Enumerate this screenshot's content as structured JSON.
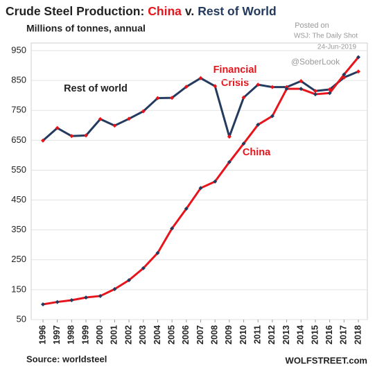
{
  "chart_data": {
    "type": "line",
    "title_parts": [
      {
        "text": "Crude Steel Production:",
        "color": "#222222"
      },
      {
        "text": "China",
        "color": "#e8141b"
      },
      {
        "text": "v.",
        "color": "#222222"
      },
      {
        "text": "Rest of World",
        "color": "#243a5e"
      }
    ],
    "subtitle": "Millions of tonnes, annual",
    "posted": [
      "Posted on",
      "WSJ: The Daily Shot",
      "24-Jun-2019"
    ],
    "handle": "@SoberLook",
    "source": "Source: worldsteel",
    "brand": "WOLFSTREET.com",
    "annotations": {
      "rest": "Rest of world",
      "crisis": [
        "Financial",
        "Crisis"
      ],
      "china": "China"
    },
    "categories": [
      "1996",
      "1997",
      "1998",
      "1999",
      "2000",
      "2001",
      "2002",
      "2003",
      "2004",
      "2005",
      "2006",
      "2007",
      "2008",
      "2009",
      "2010",
      "2011",
      "2012",
      "2013",
      "2014",
      "2015",
      "2016",
      "2017",
      "2018"
    ],
    "series": [
      {
        "name": "Rest of world",
        "color": "#243a5e",
        "marker_color": "#e8141b",
        "values": [
          649,
          691,
          664,
          666,
          721,
          699,
          722,
          747,
          791,
          792,
          829,
          858,
          831,
          662,
          793,
          836,
          828,
          828,
          848,
          815,
          820,
          860,
          880
        ]
      },
      {
        "name": "China",
        "color": "#e8141b",
        "marker_color": "#243a5e",
        "values": [
          101,
          109,
          115,
          124,
          129,
          152,
          182,
          222,
          273,
          355,
          421,
          490,
          512,
          577,
          639,
          702,
          731,
          822,
          822,
          804,
          808,
          870,
          928
        ]
      }
    ],
    "ylim": [
      50,
      950
    ],
    "yticks": [
      50,
      150,
      250,
      350,
      450,
      550,
      650,
      750,
      850,
      950
    ],
    "grid": true
  }
}
